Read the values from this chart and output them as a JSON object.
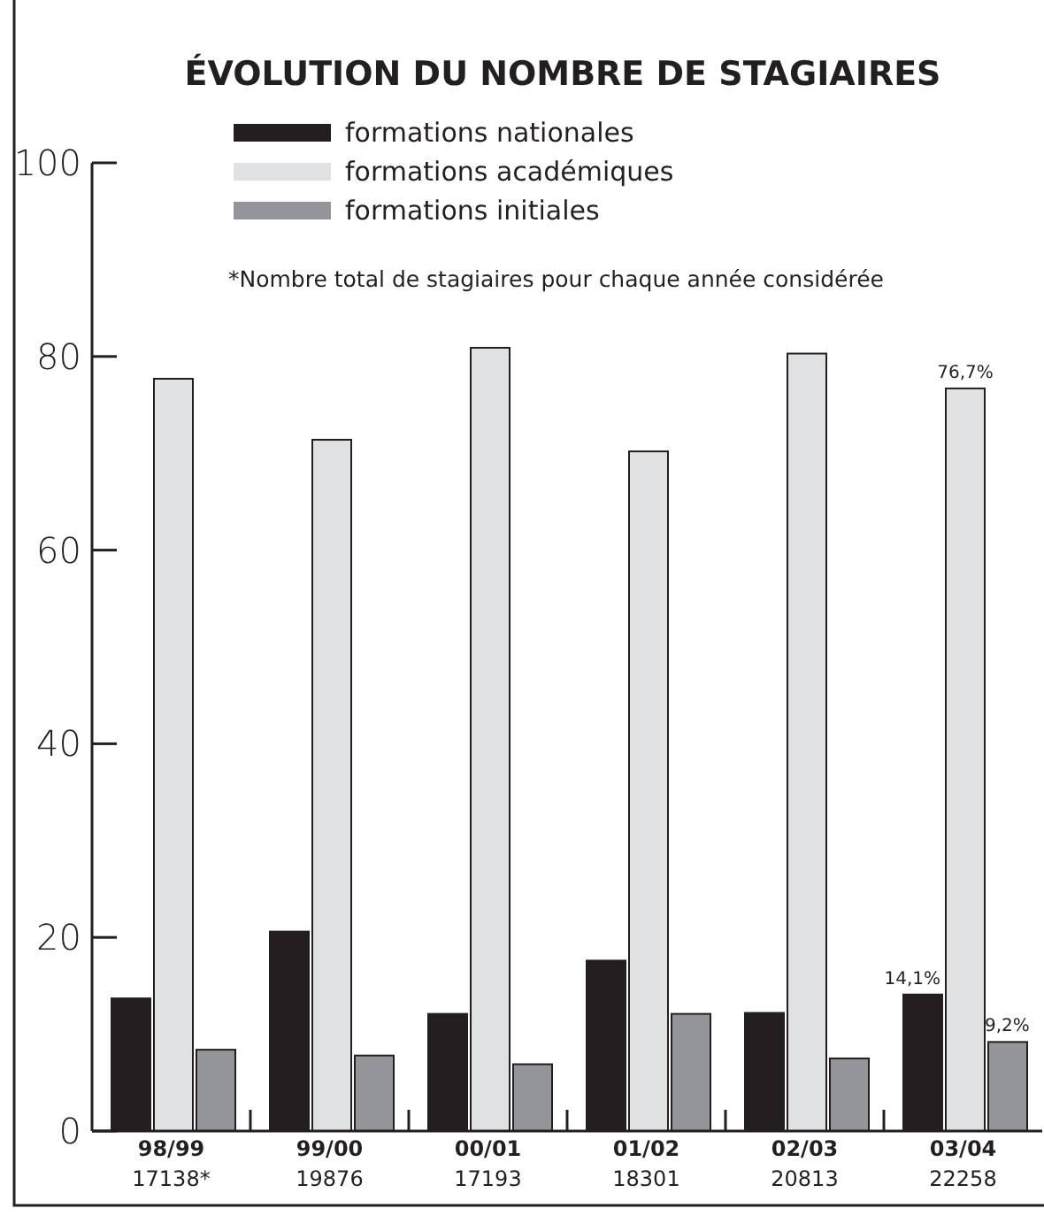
{
  "chart_data": {
    "type": "bar",
    "title": "ÉVOLUTION DU NOMBRE DE STAGIAIRES",
    "categories": [
      "98/99\n17138*",
      "99/00\n19876",
      "00/01\n17193",
      "01/02\n18301",
      "02/03\n20813",
      "03/04\n22258"
    ],
    "series": [
      {
        "name": "formations nationales",
        "color": "#231f20",
        "values": [
          13.7,
          20.6,
          12.1,
          17.6,
          12.2,
          14.1
        ],
        "value_labels": [
          null,
          null,
          null,
          null,
          null,
          "14,1%"
        ]
      },
      {
        "name": "formations académiques",
        "color": "#e0e1e3",
        "values": [
          77.7,
          71.4,
          80.9,
          70.2,
          80.3,
          76.7
        ],
        "value_labels": [
          null,
          null,
          null,
          null,
          null,
          "76,7%"
        ]
      },
      {
        "name": "formations initiales",
        "color": "#939598",
        "values": [
          8.4,
          7.8,
          6.9,
          12.1,
          7.5,
          9.2
        ],
        "value_labels": [
          null,
          null,
          null,
          null,
          null,
          "9,2%"
        ]
      }
    ],
    "ylim": [
      0,
      100
    ],
    "yticks": [
      0,
      20,
      40,
      60,
      80,
      100
    ],
    "grid": false,
    "legend": "top",
    "annotations": [
      "*Nombre total de stagiaires pour chaque année considérée"
    ]
  }
}
